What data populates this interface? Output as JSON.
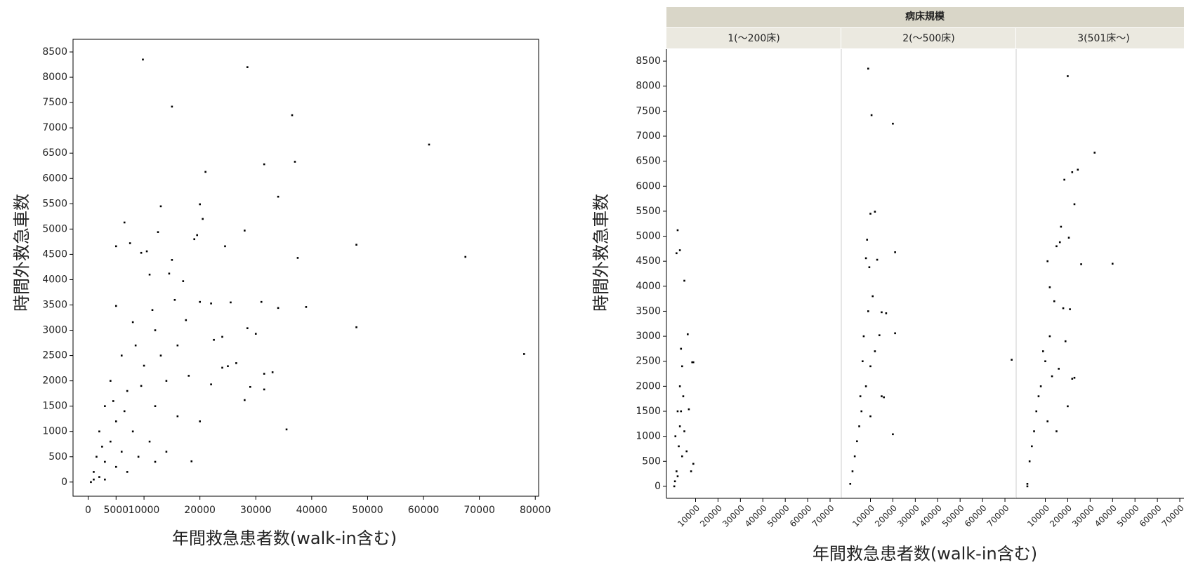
{
  "chart_data": [
    {
      "type": "scatter",
      "x_label": "年間救急患者数(walk-in含む)",
      "y_label": "時間外救急車数",
      "color": "#000000",
      "xlim": [
        -2700,
        80600
      ],
      "ylim": [
        -280,
        8750
      ],
      "xticks": [
        0,
        5000,
        10000,
        20000,
        30000,
        40000,
        50000,
        60000,
        70000,
        80000
      ],
      "yticks": [
        0,
        500,
        1000,
        1500,
        2000,
        2500,
        3000,
        3500,
        4000,
        4500,
        5000,
        5500,
        6000,
        6500,
        7000,
        7500,
        8000,
        8500
      ],
      "x": [
        9800,
        28500,
        15000,
        36500,
        61000,
        31500,
        37000,
        21000,
        34000,
        13000,
        20000,
        6500,
        20500,
        12500,
        28000,
        19000,
        19500,
        5000,
        7500,
        10500,
        9500,
        15000,
        24500,
        37500,
        67500,
        48000,
        11000,
        14500,
        17000,
        20000,
        22000,
        25500,
        31000,
        34000,
        39000,
        48000,
        28500,
        30000,
        24000,
        78000,
        22500,
        25000,
        26500,
        24000,
        31500,
        33000,
        29000,
        28000,
        31500,
        35500,
        18500,
        22000,
        5000,
        8000,
        12000,
        16000,
        6000,
        10000,
        14000,
        18000,
        4000,
        7000,
        12000,
        16000,
        20000,
        3000,
        5000,
        8000,
        11000,
        14000,
        2000,
        4000,
        6000,
        9000,
        12000,
        1500,
        3000,
        5000,
        7000,
        1000,
        2000,
        3000,
        1000,
        500,
        2500,
        4500,
        6500,
        9500,
        13000,
        17500,
        15500,
        8500,
        11500
      ],
      "y": [
        8350,
        8200,
        7420,
        7250,
        6670,
        6280,
        6330,
        6130,
        5640,
        5450,
        5490,
        5130,
        5200,
        4940,
        4970,
        4800,
        4880,
        4660,
        4720,
        4560,
        4530,
        4390,
        4660,
        4430,
        4450,
        4690,
        4100,
        4120,
        3970,
        3560,
        3530,
        3550,
        3560,
        3440,
        3460,
        3060,
        3040,
        2930,
        2870,
        2530,
        2810,
        2290,
        2350,
        2260,
        2140,
        2170,
        1880,
        1620,
        1830,
        1040,
        410,
        1930,
        3480,
        3160,
        3000,
        2700,
        2500,
        2300,
        2000,
        2100,
        2000,
        1800,
        1500,
        1300,
        1200,
        1500,
        1200,
        1000,
        800,
        600,
        1000,
        800,
        600,
        500,
        400,
        500,
        400,
        300,
        200,
        200,
        100,
        50,
        50,
        0,
        700,
        1600,
        1400,
        1900,
        2500,
        3200,
        3600,
        2700,
        3400
      ]
    },
    {
      "type": "faceted-scatter",
      "facet_title": "病床規模",
      "x_label": "年間救急患者数(walk-in含む)",
      "y_label": "時間外救急車数",
      "color": "#000000",
      "xlim": [
        -3000,
        75000
      ],
      "ylim": [
        -240,
        8740
      ],
      "xticks": [
        10000,
        20000,
        30000,
        40000,
        50000,
        60000,
        70000
      ],
      "yticks": [
        0,
        500,
        1000,
        1500,
        2000,
        2500,
        3000,
        3500,
        4000,
        4500,
        5000,
        5500,
        6000,
        6500,
        7000,
        7500,
        8000,
        8500
      ],
      "panels": [
        {
          "label": "1(～200床)",
          "x": [
            2000,
            3000,
            1500,
            5000,
            6500,
            3500,
            8500,
            9000,
            7000,
            4000,
            3000,
            2000,
            1000,
            2500,
            4000,
            1500,
            800,
            3000,
            5000,
            6000,
            9000,
            8000,
            500,
            2000,
            4500,
            3500
          ],
          "y": [
            5120,
            4720,
            4660,
            4110,
            3040,
            2750,
            2480,
            2480,
            1540,
            2400,
            2000,
            1500,
            1000,
            800,
            600,
            300,
            100,
            1200,
            1100,
            700,
            450,
            300,
            0,
            200,
            1800,
            1500
          ]
        },
        {
          "label": "2(～500床)",
          "x": [
            9000,
            10500,
            20000,
            21000,
            15000,
            17000,
            21000,
            73000,
            10000,
            12000,
            8500,
            13000,
            8000,
            9500,
            14000,
            12000,
            10000,
            15000,
            16000,
            20000,
            8000,
            6000,
            5000,
            4000,
            3000,
            2000,
            1000,
            7000,
            9000,
            11000,
            6500,
            10000,
            5500
          ],
          "y": [
            8350,
            7420,
            7250,
            4680,
            3480,
            3460,
            3060,
            2530,
            5450,
            5490,
            4930,
            4530,
            4560,
            4380,
            3020,
            2700,
            2400,
            1800,
            1780,
            1040,
            2000,
            1500,
            1200,
            900,
            600,
            300,
            50,
            3000,
            3500,
            3800,
            2500,
            1400,
            1800
          ]
        },
        {
          "label": "3(501床～)",
          "x": [
            20000,
            32000,
            22000,
            24500,
            18500,
            23000,
            17000,
            15000,
            16500,
            20500,
            11000,
            26000,
            40000,
            14000,
            18000,
            21000,
            12000,
            19000,
            10000,
            16000,
            22000,
            23000,
            20000,
            8000,
            6000,
            5000,
            4000,
            3000,
            15000,
            2000,
            2000,
            9000,
            12000,
            7000,
            11000,
            13000
          ],
          "y": [
            8200,
            6670,
            6280,
            6330,
            6130,
            5640,
            5190,
            4800,
            4880,
            4970,
            4500,
            4440,
            4450,
            3700,
            3560,
            3540,
            3980,
            2900,
            2500,
            2350,
            2150,
            2170,
            1600,
            2000,
            1500,
            1100,
            800,
            500,
            1100,
            0,
            50,
            2700,
            3000,
            1800,
            1300,
            2200
          ]
        }
      ]
    }
  ]
}
